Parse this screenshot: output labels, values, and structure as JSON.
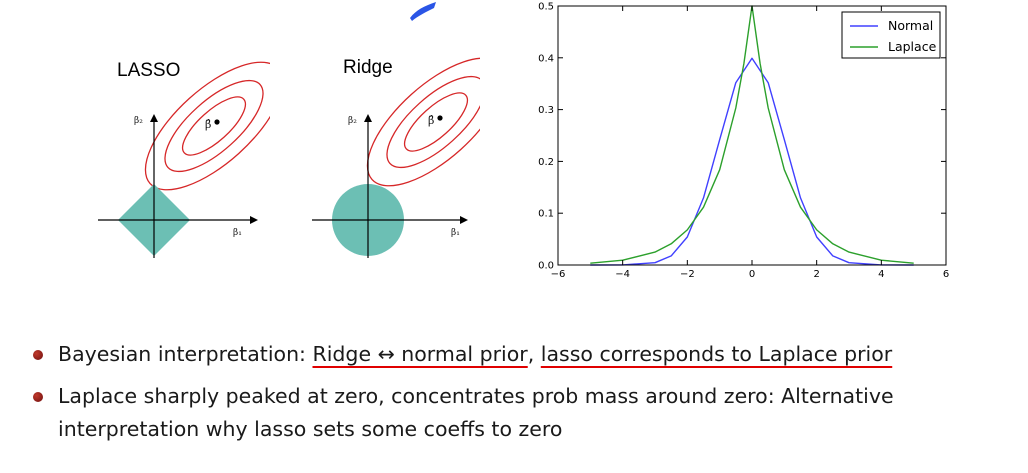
{
  "diagrams": {
    "lasso": {
      "title": "LASSO",
      "axis_y": "β₂",
      "axis_x": "β₁",
      "estimate": "β̂"
    },
    "ridge": {
      "title": "Ridge",
      "axis_y": "β₂",
      "axis_x": "β₁",
      "estimate": "β̂"
    },
    "colors": {
      "contour": "#d62728",
      "region": "#6cbfb4",
      "axis": "#000000"
    }
  },
  "chart_data": {
    "type": "line",
    "xlim": [
      -6,
      6
    ],
    "ylim": [
      0.0,
      0.5
    ],
    "xticks": [
      "−6",
      "−4",
      "−2",
      "0",
      "2",
      "4",
      "6"
    ],
    "yticks": [
      "0.0",
      "0.1",
      "0.2",
      "0.3",
      "0.4",
      "0.5"
    ],
    "legend_position": "top-right",
    "grid": false,
    "series": [
      {
        "name": "Normal",
        "color": "#4040ff",
        "x": [
          -5,
          -4,
          -3,
          -2.5,
          -2,
          -1.5,
          -1,
          -0.5,
          0,
          0.5,
          1,
          1.5,
          2,
          2.5,
          3,
          4,
          5
        ],
        "y": [
          0.0,
          0.0001,
          0.0044,
          0.0175,
          0.054,
          0.1295,
          0.242,
          0.352,
          0.399,
          0.352,
          0.242,
          0.1295,
          0.054,
          0.0175,
          0.0044,
          0.0001,
          0.0
        ]
      },
      {
        "name": "Laplace",
        "color": "#2ca02c",
        "x": [
          -5,
          -4,
          -3,
          -2.5,
          -2,
          -1.5,
          -1,
          -0.5,
          -0.25,
          0,
          0.25,
          0.5,
          1,
          1.5,
          2,
          2.5,
          3,
          4,
          5
        ],
        "y": [
          0.0034,
          0.0092,
          0.0249,
          0.041,
          0.0677,
          0.1116,
          0.184,
          0.303,
          0.389,
          0.5,
          0.389,
          0.303,
          0.184,
          0.1116,
          0.0677,
          0.041,
          0.0249,
          0.0092,
          0.0034
        ]
      }
    ]
  },
  "bullets": [
    {
      "parts": [
        {
          "text": "Bayesian interpretation:  ",
          "ul": false
        },
        {
          "text": "Ridge ↔ normal prior",
          "ul": true
        },
        {
          "text": ", ",
          "ul": false
        },
        {
          "text": "lasso corresponds to Laplace prior",
          "ul": true
        }
      ]
    },
    {
      "parts": [
        {
          "text": "Laplace sharply peaked at zero, concentrates prob mass around zero: Alternative interpretation why lasso sets some coeffs to zero",
          "ul": false
        }
      ]
    }
  ]
}
